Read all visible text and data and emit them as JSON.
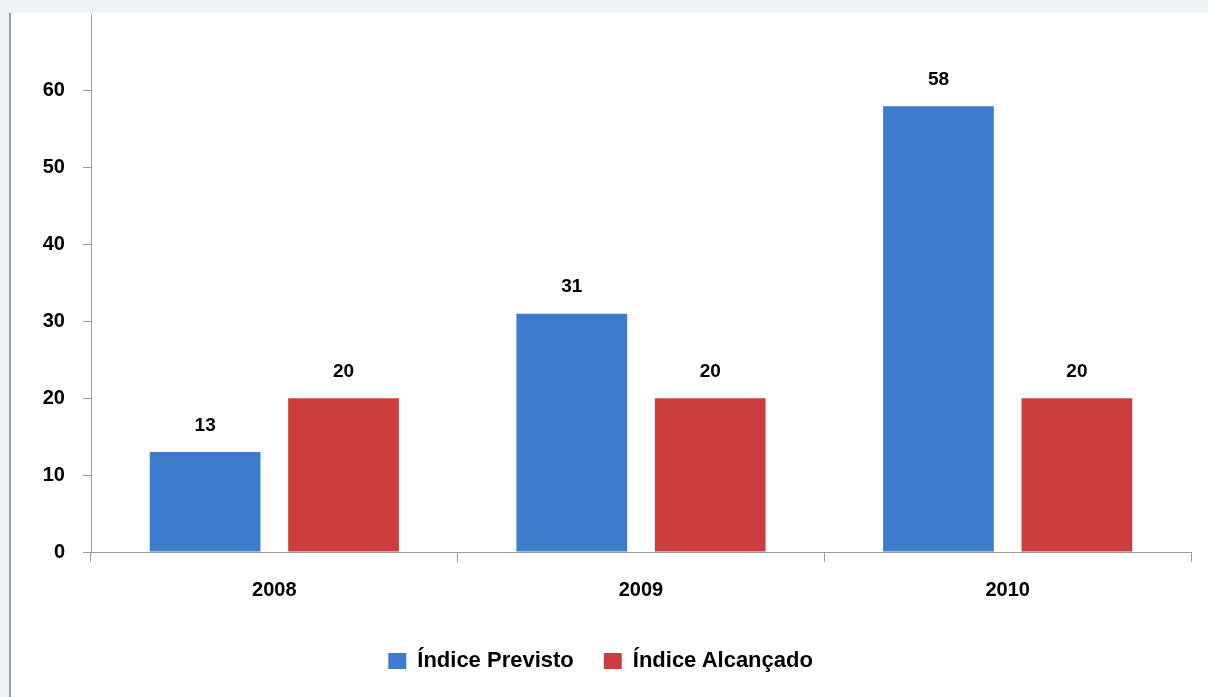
{
  "chart_data": {
    "type": "bar",
    "categories": [
      "2008",
      "2009",
      "2010"
    ],
    "series": [
      {
        "name": "Índice Previsto",
        "color": "#3d7ccc",
        "values": [
          13,
          31,
          58
        ]
      },
      {
        "name": "Índice Alcançado",
        "color": "#cc3d3d",
        "values": [
          20,
          20,
          20
        ]
      }
    ],
    "ylim": [
      0,
      70
    ],
    "yticks": [
      0,
      10,
      20,
      30,
      40,
      50,
      60
    ],
    "grid": false,
    "legend": "bottom",
    "data_labels": true
  }
}
